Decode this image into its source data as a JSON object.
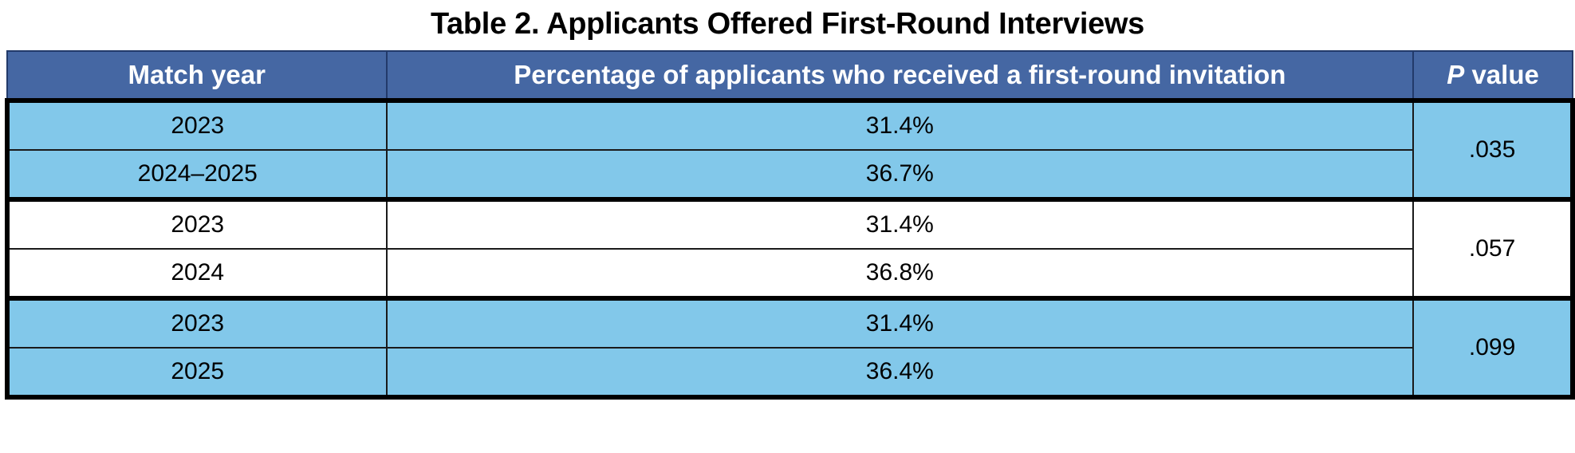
{
  "title": "Table 2. Applicants Offered First-Round Interviews",
  "headers": {
    "col1": "Match year",
    "col2": "Percentage of applicants who received a first-round invitation",
    "col3_p": "P",
    "col3_rest": " value"
  },
  "groups": [
    {
      "shade": "#82c8ea",
      "rows": [
        {
          "year": "2023",
          "pct": "31.4%"
        },
        {
          "year": "2024–2025",
          "pct": "36.7%"
        }
      ],
      "p_value": ".035"
    },
    {
      "shade": "#ffffff",
      "rows": [
        {
          "year": "2023",
          "pct": "31.4%"
        },
        {
          "year": "2024",
          "pct": "36.8%"
        }
      ],
      "p_value": ".057"
    },
    {
      "shade": "#82c8ea",
      "rows": [
        {
          "year": "2023",
          "pct": "31.4%"
        },
        {
          "year": "2025",
          "pct": "36.4%"
        }
      ],
      "p_value": ".099"
    }
  ],
  "colors": {
    "header_bg": "#4567a3",
    "row_blue": "#82c8ea",
    "row_white": "#ffffff"
  }
}
